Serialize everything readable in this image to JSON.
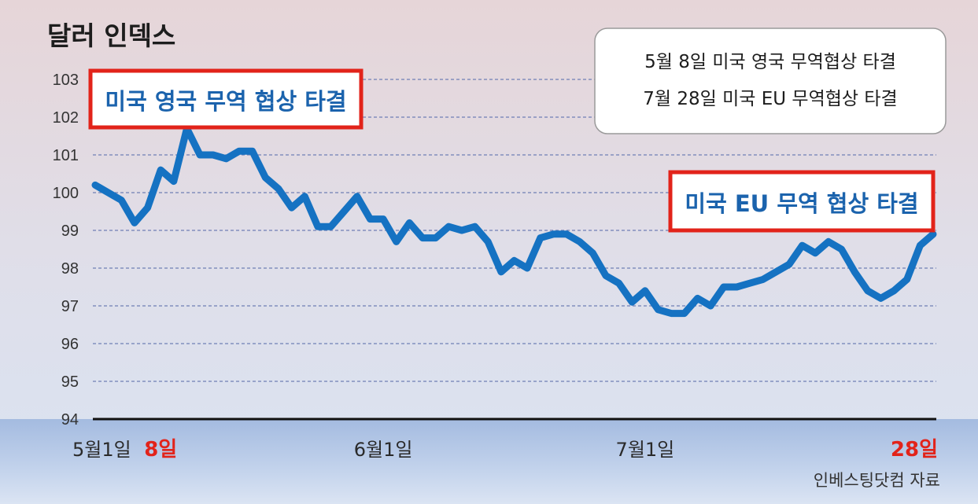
{
  "chart_data": {
    "type": "line",
    "title": "달러 인덱스",
    "ylim": [
      94,
      103
    ],
    "y_ticks": [
      "103",
      "102",
      "101",
      "100",
      "99",
      "98",
      "97",
      "96",
      "95",
      "94"
    ],
    "x_labels": [
      {
        "text": "5월1일",
        "index": 0,
        "highlight": false
      },
      {
        "text": "8일",
        "index": 5,
        "highlight": true
      },
      {
        "text": "6월1일",
        "index": 22,
        "highlight": false
      },
      {
        "text": "7월1일",
        "index": 42,
        "highlight": false
      },
      {
        "text": "28일",
        "index": 61,
        "highlight": true
      }
    ],
    "grid": true,
    "line_color": "#1572c2",
    "series": [
      {
        "values": [
          100.2,
          100.0,
          99.8,
          99.2,
          99.6,
          100.6,
          100.3,
          101.7,
          101.0,
          101.0,
          100.9,
          101.1,
          101.1,
          100.4,
          100.1,
          99.6,
          99.9,
          99.1,
          99.1,
          99.5,
          99.9,
          99.3,
          99.3,
          98.7,
          99.2,
          98.8,
          98.8,
          99.1,
          99.0,
          99.1,
          98.7,
          97.9,
          98.2,
          98.0,
          98.8,
          98.9,
          98.9,
          98.7,
          98.4,
          97.8,
          97.6,
          97.1,
          97.4,
          96.9,
          96.8,
          96.8,
          97.2,
          97.0,
          97.5,
          97.5,
          97.6,
          97.7,
          97.9,
          98.1,
          98.6,
          98.4,
          98.7,
          98.5,
          97.9,
          97.4,
          97.2,
          97.4,
          97.7,
          98.6,
          98.9
        ]
      }
    ],
    "annotations": {
      "uk_deal": "미국 영국 무역 협상 타결",
      "eu_deal": "미국 EU 무역 협상 타결"
    },
    "legend_notes": [
      "5월 8일 미국 영국 무역협상 타결",
      "7월 28일 미국 EU 무역협상 타결"
    ],
    "source": "인베스팅닷컴 자료"
  },
  "colors": {
    "accent_red": "#e2231a",
    "callout_blue": "#1b63ad",
    "bg_top": "#e6d5d8",
    "bg_bottom": "#dbe3f1",
    "band": "#a9bfe0"
  }
}
